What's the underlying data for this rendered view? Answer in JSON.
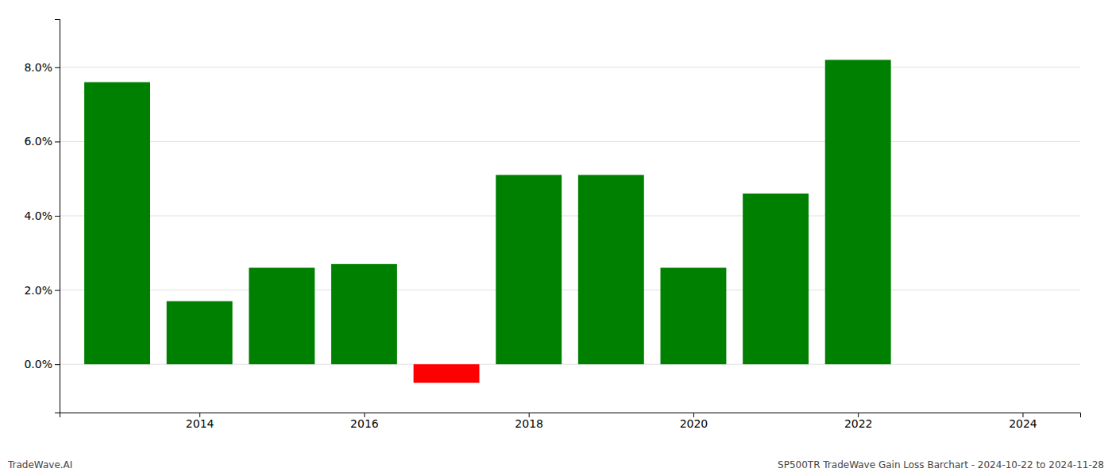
{
  "chart_data": {
    "type": "bar",
    "x": [
      2013,
      2014,
      2015,
      2016,
      2017,
      2018,
      2019,
      2020,
      2021,
      2022
    ],
    "values": [
      0.076,
      0.017,
      0.026,
      0.027,
      -0.005,
      0.051,
      0.051,
      0.026,
      0.046,
      0.082
    ],
    "colors": [
      "#008000",
      "#008000",
      "#008000",
      "#008000",
      "#ff0000",
      "#008000",
      "#008000",
      "#008000",
      "#008000",
      "#008000"
    ],
    "xlim": [
      2012.3,
      2024.7
    ],
    "xticks": [
      2014,
      2016,
      2018,
      2020,
      2022,
      2024
    ],
    "ylim": [
      -0.013,
      0.093
    ],
    "yticks": [
      {
        "value": 0,
        "label": "0.0%"
      },
      {
        "value": 0.02,
        "label": "2.0%"
      },
      {
        "value": 0.04,
        "label": "4.0%"
      },
      {
        "value": 0.06,
        "label": "6.0%"
      },
      {
        "value": 0.08,
        "label": "8.0%"
      }
    ],
    "grid": true,
    "annotations": [
      "TradeWave.AI",
      "SP500TR TradeWave Gain Loss Barchart - 2024-10-22 to 2024-11-28"
    ]
  }
}
